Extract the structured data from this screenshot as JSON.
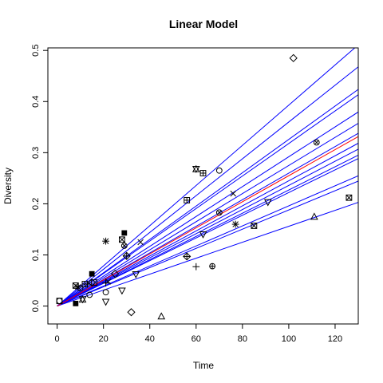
{
  "chart_data": {
    "type": "scatter",
    "title": "Linear Model",
    "xlabel": "Time",
    "ylabel": "Diversity",
    "xlim": [
      -4,
      130
    ],
    "ylim": [
      -0.035,
      0.505
    ],
    "xticks": [
      "0",
      "20",
      "40",
      "60",
      "80",
      "100",
      "120"
    ],
    "xtick_values": [
      0,
      20,
      40,
      60,
      80,
      100,
      120
    ],
    "yticks": [
      "0.0",
      "0.1",
      "0.2",
      "0.3",
      "0.4",
      "0.5"
    ],
    "ytick_values": [
      0,
      0.1,
      0.2,
      0.3,
      0.4,
      0.5
    ],
    "grid": false,
    "legend": "none",
    "colors": {
      "fit_lines": "#0000ff",
      "mean_line": "#ff0000",
      "points": "#000000"
    },
    "regression_lines": {
      "intercept": 0,
      "x_end": 130,
      "slopes": [
        0.00393,
        0.0036,
        0.00326,
        0.00318,
        0.00292,
        0.00275,
        0.0026,
        0.00245,
        0.00236,
        0.00227,
        0.00222,
        0.00196,
        0.00188,
        0.00156
      ]
    },
    "mean_line": {
      "intercept": 0,
      "slope": 0.00255,
      "x_end": 130
    },
    "points": [
      {
        "x": 1,
        "y": 0.01,
        "symbol": "square"
      },
      {
        "x": 1,
        "y": 0.01,
        "symbol": "circle"
      },
      {
        "x": 8,
        "y": 0.005,
        "symbol": "filled-square"
      },
      {
        "x": 8,
        "y": 0.04,
        "symbol": "square-x"
      },
      {
        "x": 9,
        "y": 0.037,
        "symbol": "asterisk"
      },
      {
        "x": 10,
        "y": 0.035,
        "symbol": "circle"
      },
      {
        "x": 11,
        "y": 0.013,
        "symbol": "triangle-up"
      },
      {
        "x": 11,
        "y": 0.013,
        "symbol": "triangle-down"
      },
      {
        "x": 12,
        "y": 0.043,
        "symbol": "square-cross"
      },
      {
        "x": 13,
        "y": 0.043,
        "symbol": "cross"
      },
      {
        "x": 14,
        "y": 0.022,
        "symbol": "circle"
      },
      {
        "x": 15,
        "y": 0.063,
        "symbol": "filled-square"
      },
      {
        "x": 15,
        "y": 0.046,
        "symbol": "diamond"
      },
      {
        "x": 16,
        "y": 0.046,
        "symbol": "square"
      },
      {
        "x": 21,
        "y": 0.127,
        "symbol": "asterisk"
      },
      {
        "x": 21,
        "y": 0.027,
        "symbol": "circle"
      },
      {
        "x": 21,
        "y": 0.008,
        "symbol": "triangle-down"
      },
      {
        "x": 21,
        "y": 0.045,
        "symbol": "cross"
      },
      {
        "x": 22,
        "y": 0.048,
        "symbol": "x"
      },
      {
        "x": 25,
        "y": 0.063,
        "symbol": "diamond"
      },
      {
        "x": 28,
        "y": 0.13,
        "symbol": "square-x"
      },
      {
        "x": 28,
        "y": 0.03,
        "symbol": "triangle-down"
      },
      {
        "x": 29,
        "y": 0.143,
        "symbol": "filled-square"
      },
      {
        "x": 29,
        "y": 0.118,
        "symbol": "circle-x"
      },
      {
        "x": 30,
        "y": 0.098,
        "symbol": "diamond-cross"
      },
      {
        "x": 32,
        "y": -0.012,
        "symbol": "diamond"
      },
      {
        "x": 34,
        "y": 0.062,
        "symbol": "triangle-down"
      },
      {
        "x": 36,
        "y": 0.125,
        "symbol": "x"
      },
      {
        "x": 45,
        "y": -0.02,
        "symbol": "triangle-up"
      },
      {
        "x": 56,
        "y": 0.207,
        "symbol": "square-cross"
      },
      {
        "x": 56,
        "y": 0.097,
        "symbol": "diamond-cross"
      },
      {
        "x": 60,
        "y": 0.268,
        "symbol": "triangle-up"
      },
      {
        "x": 60,
        "y": 0.268,
        "symbol": "triangle-down"
      },
      {
        "x": 60,
        "y": 0.077,
        "symbol": "cross"
      },
      {
        "x": 63,
        "y": 0.26,
        "symbol": "square-cross"
      },
      {
        "x": 63,
        "y": 0.14,
        "symbol": "triangle-down"
      },
      {
        "x": 67,
        "y": 0.078,
        "symbol": "circle-cross"
      },
      {
        "x": 70,
        "y": 0.265,
        "symbol": "circle"
      },
      {
        "x": 70,
        "y": 0.183,
        "symbol": "circle-x"
      },
      {
        "x": 76,
        "y": 0.22,
        "symbol": "x"
      },
      {
        "x": 77,
        "y": 0.16,
        "symbol": "asterisk"
      },
      {
        "x": 85,
        "y": 0.157,
        "symbol": "square-x"
      },
      {
        "x": 91,
        "y": 0.203,
        "symbol": "triangle-down"
      },
      {
        "x": 102,
        "y": 0.485,
        "symbol": "diamond"
      },
      {
        "x": 111,
        "y": 0.175,
        "symbol": "triangle-up"
      },
      {
        "x": 112,
        "y": 0.32,
        "symbol": "circle-x"
      },
      {
        "x": 126,
        "y": 0.212,
        "symbol": "square-x"
      }
    ]
  }
}
